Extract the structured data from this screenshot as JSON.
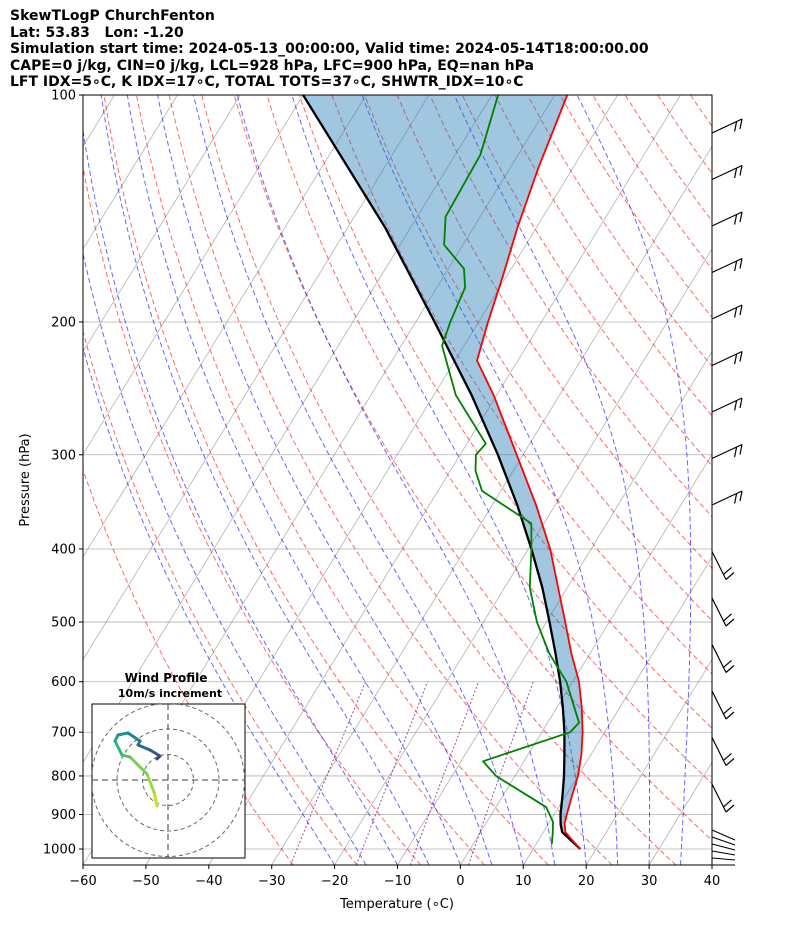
{
  "header": {
    "line1": "SkewTLogP ChurchFenton",
    "line2": "Lat: 53.83   Lon: -1.20",
    "line3": "Simulation start time: 2024-05-13_00:00:00, Valid time: 2024-05-14T18:00:00.00",
    "line4": "CAPE=0 j/kg, CIN=0 j/kg, LCL=928 hPa, LFC=900 hPa, EQ=nan hPa",
    "line5": "LFT IDX=5∘C, K IDX=17∘C, TOTAL TOTS=37∘C, SHWTR_IDX=10∘C"
  },
  "chart_data": {
    "type": "skewt",
    "xlabel": "Temperature (∘C)",
    "ylabel": "Pressure (hPa)",
    "xlim": [
      -60,
      40
    ],
    "ylim": [
      1050,
      100
    ],
    "x_ticks": [
      "−60",
      "−50",
      "−40",
      "−30",
      "−20",
      "−10",
      "0",
      "10",
      "20",
      "30",
      "40"
    ],
    "y_ticks": [
      "100",
      "200",
      "300",
      "400",
      "500",
      "600",
      "700",
      "800",
      "900",
      "1000"
    ],
    "y_tick_values": [
      100,
      200,
      300,
      400,
      500,
      600,
      700,
      800,
      900,
      1000
    ],
    "temperature": [
      {
        "p": 1000,
        "t": 17.5
      },
      {
        "p": 975,
        "t": 15.5
      },
      {
        "p": 950,
        "t": 13.5
      },
      {
        "p": 925,
        "t": 12.5
      },
      {
        "p": 900,
        "t": 12.0
      },
      {
        "p": 850,
        "t": 11.0
      },
      {
        "p": 800,
        "t": 10.0
      },
      {
        "p": 750,
        "t": 8.5
      },
      {
        "p": 700,
        "t": 6.5
      },
      {
        "p": 650,
        "t": 4.0
      },
      {
        "p": 600,
        "t": 1.0
      },
      {
        "p": 550,
        "t": -3.0
      },
      {
        "p": 500,
        "t": -7.0
      },
      {
        "p": 450,
        "t": -11.5
      },
      {
        "p": 400,
        "t": -16.5
      },
      {
        "p": 350,
        "t": -23.0
      },
      {
        "p": 300,
        "t": -31.0
      },
      {
        "p": 250,
        "t": -40.5
      },
      {
        "p": 225,
        "t": -46.5
      },
      {
        "p": 200,
        "t": -48.5
      },
      {
        "p": 175,
        "t": -50.5
      },
      {
        "p": 150,
        "t": -53.0
      },
      {
        "p": 125,
        "t": -55.5
      },
      {
        "p": 100,
        "t": -58.0
      }
    ],
    "dewpoint": [
      {
        "p": 985,
        "t": 12.5
      },
      {
        "p": 950,
        "t": 11.5
      },
      {
        "p": 920,
        "t": 10.5
      },
      {
        "p": 880,
        "t": 8.0
      },
      {
        "p": 850,
        "t": 4.0
      },
      {
        "p": 800,
        "t": -3.0
      },
      {
        "p": 765,
        "t": -6.5
      },
      {
        "p": 700,
        "t": 4.5
      },
      {
        "p": 680,
        "t": 5.0
      },
      {
        "p": 600,
        "t": -1.0
      },
      {
        "p": 550,
        "t": -6.5
      },
      {
        "p": 500,
        "t": -11.5
      },
      {
        "p": 450,
        "t": -16.0
      },
      {
        "p": 400,
        "t": -19.5
      },
      {
        "p": 370,
        "t": -22.0
      },
      {
        "p": 335,
        "t": -33.0
      },
      {
        "p": 315,
        "t": -36.0
      },
      {
        "p": 300,
        "t": -37.5
      },
      {
        "p": 290,
        "t": -37.0
      },
      {
        "p": 250,
        "t": -46.5
      },
      {
        "p": 215,
        "t": -53.5
      },
      {
        "p": 200,
        "t": -54.5
      },
      {
        "p": 180,
        "t": -55.5
      },
      {
        "p": 170,
        "t": -57.5
      },
      {
        "p": 158,
        "t": -63.0
      },
      {
        "p": 145,
        "t": -65.5
      },
      {
        "p": 120,
        "t": -66.0
      },
      {
        "p": 100,
        "t": -69.0
      }
    ],
    "parcel": [
      {
        "p": 1000,
        "t": 17.5
      },
      {
        "p": 950,
        "t": 13.0
      },
      {
        "p": 928,
        "t": 12.0
      },
      {
        "p": 900,
        "t": 11.0
      },
      {
        "p": 850,
        "t": 9.5
      },
      {
        "p": 800,
        "t": 7.8
      },
      {
        "p": 750,
        "t": 5.8
      },
      {
        "p": 700,
        "t": 3.6
      },
      {
        "p": 650,
        "t": 1.0
      },
      {
        "p": 600,
        "t": -2.0
      },
      {
        "p": 550,
        "t": -5.5
      },
      {
        "p": 500,
        "t": -9.5
      },
      {
        "p": 450,
        "t": -14.0
      },
      {
        "p": 400,
        "t": -19.5
      },
      {
        "p": 350,
        "t": -26.0
      },
      {
        "p": 300,
        "t": -34.0
      },
      {
        "p": 250,
        "t": -44.0
      },
      {
        "p": 200,
        "t": -57.0
      },
      {
        "p": 150,
        "t": -74.0
      },
      {
        "p": 100,
        "t": -100.0
      }
    ],
    "wind_profile_inset": {
      "title_line1": "Wind Profile",
      "title_line2": "10m/s increment",
      "rings_ms": [
        10,
        20,
        30
      ]
    },
    "colors": {
      "temperature": "#ff0000",
      "dewpoint": "#008000",
      "parcel": "#000000",
      "cape_fill": "#1f77b4",
      "dry_adiabat": "#ff0000",
      "moist_adiabat": "#0000ff",
      "mixing_ratio": "#800080",
      "isotherm": "#7f7f7f"
    }
  }
}
